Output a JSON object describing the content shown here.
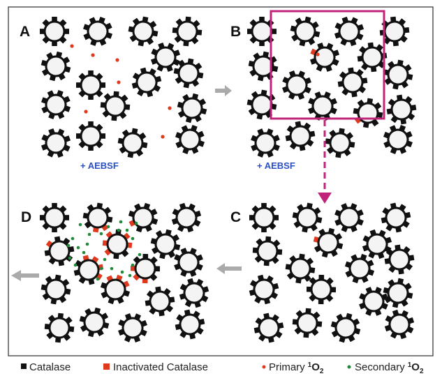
{
  "panels": [
    {
      "label": "A"
    },
    {
      "label": "B"
    },
    {
      "label": "C"
    },
    {
      "label": "D"
    }
  ],
  "annotations": [
    {
      "text": "+ AEBSF"
    },
    {
      "text": "+ AEBSF"
    }
  ],
  "legend": [
    {
      "label": "Catalase"
    },
    {
      "label": "Inactivated Catalase"
    },
    {
      "label": "Primary",
      "sup": "1",
      "base": "O",
      "sub": "2"
    },
    {
      "label": "Secondary",
      "sup": "1",
      "base": "O",
      "sub": "2"
    }
  ]
}
